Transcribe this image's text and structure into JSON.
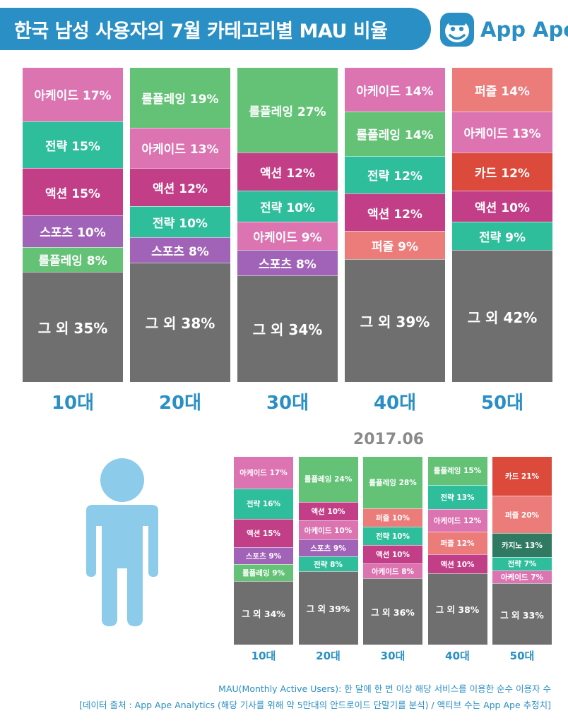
{
  "header": {
    "title": "한국 남성 사용자의 7월 카테고리별 MAU 비율",
    "brand": "App Ape",
    "brand_icon": "monkey-face-icon"
  },
  "colors": {
    "brand_blue": "#2a8fc4",
    "arcade": "#dc74b2",
    "strategy": "#2fbe9b",
    "action": "#c23e87",
    "sports": "#a163b7",
    "rpg": "#64c276",
    "puzzle": "#ec7c7a",
    "card": "#dc4a3c",
    "casino": "#2f7a61",
    "other": "#6f6f6f",
    "person": "#8ccbea"
  },
  "chart_data": [
    {
      "type": "stacked-bar",
      "title": "한국 남성 사용자의 7월 카테고리별 MAU 비율",
      "categories": [
        "10대",
        "20대",
        "30대",
        "40대",
        "50대"
      ],
      "stacks": [
        [
          {
            "label": "아케이드 17%",
            "value": 17,
            "color": "arcade"
          },
          {
            "label": "전략 15%",
            "value": 15,
            "color": "strategy"
          },
          {
            "label": "액션 15%",
            "value": 15,
            "color": "action"
          },
          {
            "label": "스포츠 10%",
            "value": 10,
            "color": "sports"
          },
          {
            "label": "롤플레잉 8%",
            "value": 8,
            "color": "rpg"
          },
          {
            "label": "그 외 35%",
            "value": 35,
            "color": "other"
          }
        ],
        [
          {
            "label": "롤플레잉 19%",
            "value": 19,
            "color": "rpg"
          },
          {
            "label": "아케이드 13%",
            "value": 13,
            "color": "arcade"
          },
          {
            "label": "액션 12%",
            "value": 12,
            "color": "action"
          },
          {
            "label": "전략 10%",
            "value": 10,
            "color": "strategy"
          },
          {
            "label": "스포츠 8%",
            "value": 8,
            "color": "sports"
          },
          {
            "label": "그 외 38%",
            "value": 38,
            "color": "other"
          }
        ],
        [
          {
            "label": "롤플레잉 27%",
            "value": 27,
            "color": "rpg"
          },
          {
            "label": "액션 12%",
            "value": 12,
            "color": "action"
          },
          {
            "label": "전략 10%",
            "value": 10,
            "color": "strategy"
          },
          {
            "label": "아케이드 9%",
            "value": 9,
            "color": "arcade"
          },
          {
            "label": "스포츠 8%",
            "value": 8,
            "color": "sports"
          },
          {
            "label": "그 외 34%",
            "value": 34,
            "color": "other"
          }
        ],
        [
          {
            "label": "아케이드 14%",
            "value": 14,
            "color": "arcade"
          },
          {
            "label": "롤플레잉 14%",
            "value": 14,
            "color": "rpg"
          },
          {
            "label": "전략 12%",
            "value": 12,
            "color": "strategy"
          },
          {
            "label": "액션 12%",
            "value": 12,
            "color": "action"
          },
          {
            "label": "퍼즐 9%",
            "value": 9,
            "color": "puzzle"
          },
          {
            "label": "그 외 39%",
            "value": 39,
            "color": "other"
          }
        ],
        [
          {
            "label": "퍼즐 14%",
            "value": 14,
            "color": "puzzle"
          },
          {
            "label": "아케이드 13%",
            "value": 13,
            "color": "arcade"
          },
          {
            "label": "카드 12%",
            "value": 12,
            "color": "card"
          },
          {
            "label": "액션 10%",
            "value": 10,
            "color": "action"
          },
          {
            "label": "전략 9%",
            "value": 9,
            "color": "strategy"
          },
          {
            "label": "그 외 42%",
            "value": 42,
            "color": "other"
          }
        ]
      ]
    },
    {
      "type": "stacked-bar",
      "title": "2017.06",
      "categories": [
        "10대",
        "20대",
        "30대",
        "40대",
        "50대"
      ],
      "stacks": [
        [
          {
            "label": "아케이드 17%",
            "value": 17,
            "color": "arcade"
          },
          {
            "label": "전략 16%",
            "value": 16,
            "color": "strategy"
          },
          {
            "label": "액션 15%",
            "value": 15,
            "color": "action"
          },
          {
            "label": "스포츠 9%",
            "value": 9,
            "color": "sports"
          },
          {
            "label": "롤플레잉 9%",
            "value": 9,
            "color": "rpg"
          },
          {
            "label": "그 외 34%",
            "value": 34,
            "color": "other"
          }
        ],
        [
          {
            "label": "롤플레잉 24%",
            "value": 24,
            "color": "rpg"
          },
          {
            "label": "액션 10%",
            "value": 10,
            "color": "action"
          },
          {
            "label": "아케이드 10%",
            "value": 10,
            "color": "arcade"
          },
          {
            "label": "스포츠 9%",
            "value": 9,
            "color": "sports"
          },
          {
            "label": "전략 8%",
            "value": 8,
            "color": "strategy"
          },
          {
            "label": "그 외 39%",
            "value": 39,
            "color": "other"
          }
        ],
        [
          {
            "label": "롤플레잉 28%",
            "value": 28,
            "color": "rpg"
          },
          {
            "label": "퍼즐 10%",
            "value": 10,
            "color": "puzzle"
          },
          {
            "label": "전략 10%",
            "value": 10,
            "color": "strategy"
          },
          {
            "label": "액션 10%",
            "value": 10,
            "color": "action"
          },
          {
            "label": "아케이드 8%",
            "value": 8,
            "color": "arcade"
          },
          {
            "label": "그 외 36%",
            "value": 36,
            "color": "other"
          }
        ],
        [
          {
            "label": "롤플레잉 15%",
            "value": 15,
            "color": "rpg"
          },
          {
            "label": "전략 13%",
            "value": 13,
            "color": "strategy"
          },
          {
            "label": "아케이드 12%",
            "value": 12,
            "color": "arcade"
          },
          {
            "label": "퍼즐 12%",
            "value": 12,
            "color": "puzzle"
          },
          {
            "label": "액션 10%",
            "value": 10,
            "color": "action"
          },
          {
            "label": "그 외 38%",
            "value": 38,
            "color": "other"
          }
        ],
        [
          {
            "label": "카드 21%",
            "value": 21,
            "color": "card"
          },
          {
            "label": "퍼즐 20%",
            "value": 20,
            "color": "puzzle"
          },
          {
            "label": "카지노 13%",
            "value": 13,
            "color": "casino"
          },
          {
            "label": "전략 7%",
            "value": 7,
            "color": "strategy"
          },
          {
            "label": "아케이드 7%",
            "value": 7,
            "color": "arcade"
          },
          {
            "label": "그 외 33%",
            "value": 33,
            "color": "other"
          }
        ]
      ]
    }
  ],
  "footer": {
    "mau_definition": "MAU(Monthly Active Users): 한 달에 한 번 이상 해당 서비스를 이용한 순수 이용자 수",
    "source": "[데이터 출처 : App Ape Analytics (해당 기사를 위해 약 5만대의 안드로이드 단말기를 분석) / 액티브 수는 App Ape 추정치]"
  },
  "person_icon": "person-silhouette-icon"
}
